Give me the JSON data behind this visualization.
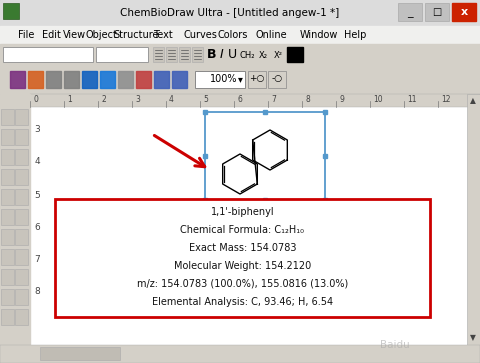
{
  "title_bar_text": "ChemBioDraw Ultra - [Untitled angew-1 *]",
  "menu_items": [
    "File",
    "Edit",
    "View",
    "Object",
    "Structure",
    "Text",
    "Curves",
    "Colors",
    "Online",
    "Window",
    "Help"
  ],
  "canvas_bg": "#ffffff",
  "info_box_lines": [
    "1,1'-biphenyl",
    "Chemical Formula: C₁₂H₁₀",
    "Exact Mass: 154.0783",
    "Molecular Weight: 154.2120",
    "m/z: 154.0783 (100.0%), 155.0816 (13.0%)",
    "Elemental Analysis: C, 93.46; H, 6.54"
  ],
  "info_box_border": "#cc0000",
  "info_box_bg": "#ffffff",
  "arrow_color": "#cc0000",
  "molecule_box_border": "#5599cc",
  "ruler_bg": "#d4d0c8",
  "ruler_text_color": "#444444",
  "ruler_ticks": [
    "0",
    "1",
    "2",
    "3",
    "4",
    "5",
    "6",
    "7",
    "8",
    "9",
    "10",
    "11",
    "12"
  ],
  "left_toolbar_bg": "#d4d0c8",
  "close_btn_color": "#cc2200",
  "win_bg": "#4a90d4",
  "toolbar_bg": "#d4d0c8",
  "menubar_bg": "#f0f0ee",
  "titlebar_bg": "#dcdcdc"
}
